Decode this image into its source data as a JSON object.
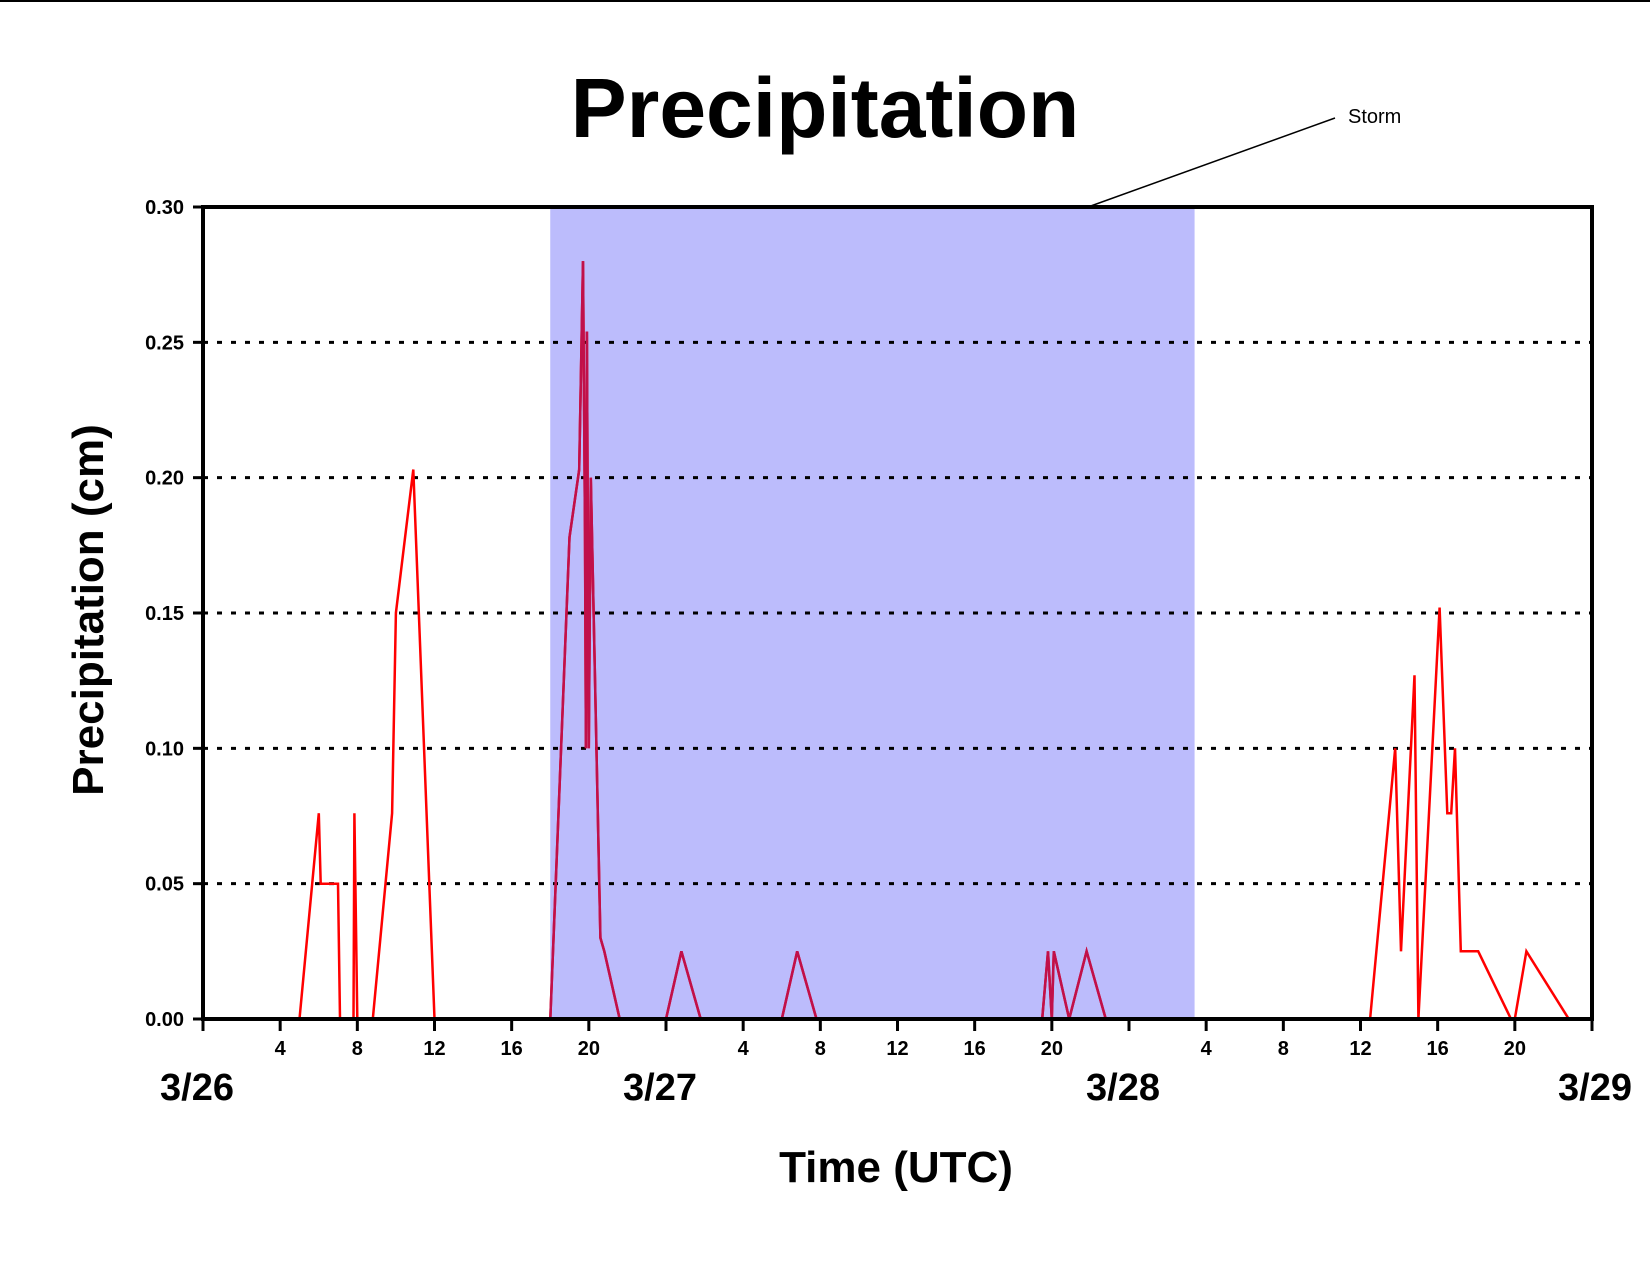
{
  "chart_data": {
    "type": "line",
    "title": "Precipitation",
    "xlabel": "Time (UTC)",
    "ylabel": "Precipitation (cm)",
    "ylim": [
      0,
      0.3
    ],
    "xlim_hours": [
      0,
      72
    ],
    "y_ticks": [
      "0.00",
      "0.05",
      "0.10",
      "0.15",
      "0.20",
      "0.25",
      "0.30"
    ],
    "x_hour_ticks": [
      {
        "hour": 4,
        "label": "4"
      },
      {
        "hour": 8,
        "label": "8"
      },
      {
        "hour": 12,
        "label": "12"
      },
      {
        "hour": 16,
        "label": "16"
      },
      {
        "hour": 20,
        "label": "20"
      },
      {
        "hour": 24,
        "label": ""
      },
      {
        "hour": 28,
        "label": "4"
      },
      {
        "hour": 32,
        "label": "8"
      },
      {
        "hour": 36,
        "label": "12"
      },
      {
        "hour": 40,
        "label": "16"
      },
      {
        "hour": 44,
        "label": "20"
      },
      {
        "hour": 48,
        "label": ""
      },
      {
        "hour": 52,
        "label": "4"
      },
      {
        "hour": 56,
        "label": "8"
      },
      {
        "hour": 60,
        "label": "12"
      },
      {
        "hour": 64,
        "label": "16"
      },
      {
        "hour": 68,
        "label": "20"
      }
    ],
    "date_labels": [
      {
        "hour": 0,
        "label": "3/26"
      },
      {
        "hour": 24,
        "label": "3/27"
      },
      {
        "hour": 48,
        "label": "3/28"
      },
      {
        "hour": 72,
        "label": "3/29"
      }
    ],
    "grid": "horizontal dotted",
    "storm_shading": {
      "label": "Storm",
      "start_hour": 18,
      "end_hour": 51.4,
      "color": "#bcbcfc"
    },
    "series": [
      {
        "color": "#ff0000",
        "x": [
          0,
          5,
          6,
          6.1,
          7,
          7.1,
          7.8,
          7.85,
          8,
          8.8,
          9.8,
          10,
          10.9,
          12,
          18,
          19,
          19.5,
          19.7,
          19.8,
          19.85,
          19.9,
          20,
          20.1,
          20.6,
          20.8,
          21.6,
          24,
          24.8,
          25.8,
          30,
          30.8,
          31.8,
          43.5,
          43.8,
          44,
          44.1,
          44.9,
          45.8,
          46.8,
          60.5,
          61.8,
          62.1,
          62.8,
          63,
          64.1,
          64.5,
          64.7,
          64.9,
          65.2,
          66.1,
          67.8,
          68,
          68.6,
          70.8,
          72
        ],
        "y": [
          0,
          0,
          0.076,
          0.05,
          0.05,
          0,
          0,
          0.076,
          0,
          0,
          0.076,
          0.15,
          0.203,
          0,
          0,
          0.178,
          0.203,
          0.28,
          0.18,
          0.1,
          0.254,
          0.1,
          0.2,
          0.03,
          0.025,
          0,
          0,
          0.025,
          0,
          0,
          0.025,
          0,
          0,
          0.025,
          0,
          0.025,
          0,
          0.025,
          0,
          0,
          0.1,
          0.025,
          0.127,
          0,
          0.152,
          0.076,
          0.076,
          0.1,
          0.025,
          0.025,
          0,
          0,
          0.025,
          0,
          0
        ]
      },
      {
        "color": "#c0104a",
        "x": [
          18,
          19,
          19.5,
          19.7,
          19.8,
          19.85,
          19.9,
          20,
          20.1,
          20.6,
          20.8,
          21.6,
          24,
          24.8,
          25.8,
          30,
          30.8,
          31.8,
          43.5,
          43.8,
          44,
          44.1,
          44.9,
          45.8,
          46.8
        ],
        "y": [
          0,
          0.178,
          0.203,
          0.28,
          0.18,
          0.1,
          0.254,
          0.1,
          0.2,
          0.03,
          0.025,
          0,
          0,
          0.025,
          0,
          0,
          0.025,
          0,
          0,
          0.025,
          0,
          0.025,
          0,
          0.025,
          0
        ]
      }
    ]
  }
}
